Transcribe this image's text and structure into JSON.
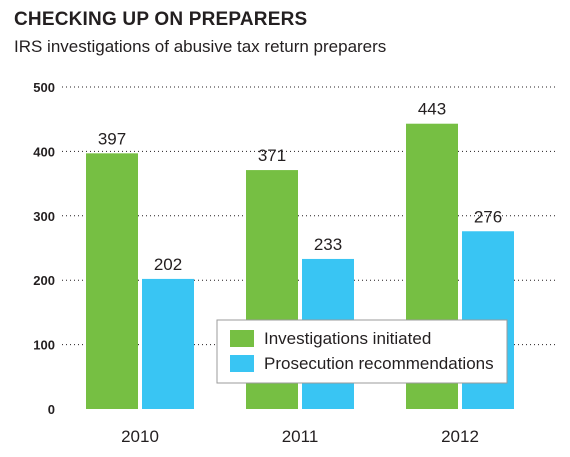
{
  "header": {
    "title": "CHECKING UP ON PREPARERS",
    "subtitle": "IRS investigations of abusive tax return preparers"
  },
  "colors": {
    "series_1": "#76bf43",
    "series_2": "#39c5f3",
    "grid": "#231f20",
    "legend_border": "#9b9b9b"
  },
  "chart_data": {
    "type": "bar",
    "title": "CHECKING UP ON PREPARERS",
    "subtitle": "IRS investigations of abusive tax return preparers",
    "xlabel": "",
    "ylabel": "",
    "categories": [
      "2010",
      "2011",
      "2012"
    ],
    "series": [
      {
        "name": "Investigations initiated",
        "values": [
          397,
          371,
          443
        ]
      },
      {
        "name": "Prosecution recommendations",
        "values": [
          202,
          233,
          276
        ]
      }
    ],
    "ylim": [
      0,
      500
    ],
    "yticks": [
      0,
      100,
      200,
      300,
      400,
      500
    ],
    "grid": "horizontal dotted",
    "legend": "bottom-right inside plot",
    "data_labels": true
  }
}
